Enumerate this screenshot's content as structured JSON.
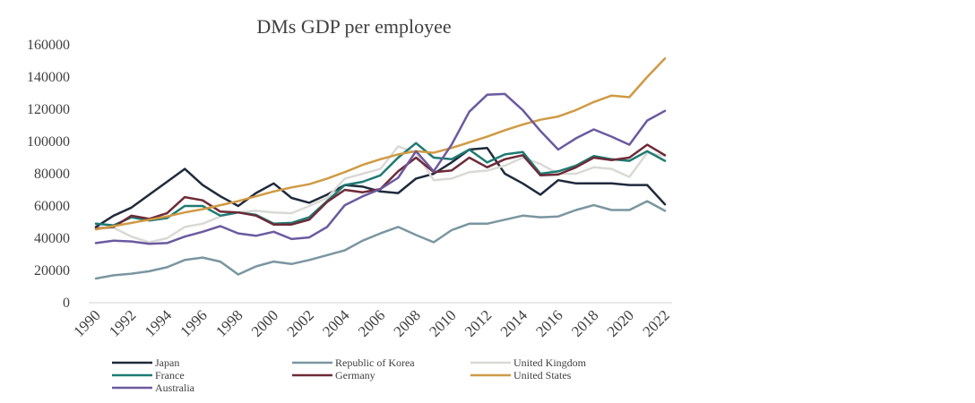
{
  "chart_data": {
    "type": "line",
    "title": "DMs  GDP per employee",
    "xlabel": "",
    "ylabel": "",
    "ylim": [
      0,
      160000
    ],
    "yticks": [
      0,
      20000,
      40000,
      60000,
      80000,
      100000,
      120000,
      140000,
      160000
    ],
    "x": [
      1990,
      1991,
      1992,
      1993,
      1994,
      1995,
      1996,
      1997,
      1998,
      1999,
      2000,
      2001,
      2002,
      2003,
      2004,
      2005,
      2006,
      2007,
      2008,
      2009,
      2010,
      2011,
      2012,
      2013,
      2014,
      2015,
      2016,
      2017,
      2018,
      2019,
      2020,
      2021,
      2022
    ],
    "xtick_labels": [
      "1990",
      "1992",
      "1994",
      "1996",
      "1998",
      "2000",
      "2002",
      "2004",
      "2006",
      "2008",
      "2010",
      "2012",
      "2014",
      "2016",
      "2018",
      "2020",
      "2022"
    ],
    "grid": false,
    "legend_position": "bottom",
    "series": [
      {
        "name": "Japan",
        "color": "#1f2a3c",
        "values": [
          47000,
          54000,
          59000,
          67000,
          75000,
          83000,
          73000,
          66000,
          60000,
          68000,
          74000,
          65000,
          62000,
          67000,
          73000,
          72000,
          69000,
          68000,
          77000,
          80000,
          87000,
          95000,
          96000,
          80000,
          74000,
          67000,
          76000,
          74000,
          74000,
          74000,
          73000,
          73000,
          61000
        ]
      },
      {
        "name": "Republic of Korea",
        "color": "#7a96a0",
        "values": [
          15000,
          17000,
          18000,
          19500,
          22000,
          26500,
          28000,
          25500,
          17500,
          22500,
          25500,
          24000,
          26500,
          29500,
          32500,
          38500,
          43000,
          47000,
          42000,
          37500,
          45000,
          49000,
          49000,
          51500,
          54000,
          53000,
          53500,
          57500,
          60500,
          57500,
          57500,
          63000,
          57000
        ]
      },
      {
        "name": "United Kingdom",
        "color": "#d9d9d6",
        "values": [
          46000,
          46500,
          41000,
          37500,
          40000,
          47000,
          49000,
          53500,
          56000,
          57000,
          56000,
          55500,
          60000,
          65000,
          77000,
          80000,
          83000,
          97000,
          93000,
          76000,
          77000,
          81000,
          82000,
          85000,
          90000,
          86000,
          80000,
          80000,
          84000,
          83000,
          78000,
          93000,
          91000
        ]
      },
      {
        "name": "France",
        "color": "#1e7a72",
        "values": [
          49000,
          48000,
          53000,
          51000,
          52500,
          60000,
          60000,
          54000,
          56000,
          54500,
          49000,
          49500,
          53000,
          63000,
          73000,
          75000,
          79000,
          90000,
          99000,
          90000,
          89000,
          95000,
          87000,
          92000,
          93500,
          80000,
          81500,
          85000,
          91000,
          89000,
          88000,
          94000,
          88000
        ]
      },
      {
        "name": "Germany",
        "color": "#6e2a38",
        "values": [
          46000,
          47000,
          54000,
          52000,
          55500,
          65500,
          63500,
          56500,
          56000,
          54000,
          48500,
          48500,
          51500,
          62500,
          70000,
          68500,
          70500,
          81500,
          90000,
          81000,
          82000,
          90000,
          84000,
          89000,
          91500,
          79000,
          79500,
          84000,
          90000,
          88500,
          90000,
          98000,
          91500
        ]
      },
      {
        "name": "United States",
        "color": "#d09a44",
        "values": [
          45500,
          47500,
          49500,
          51500,
          53500,
          56000,
          58000,
          60500,
          63000,
          66000,
          69000,
          71500,
          73500,
          77000,
          81000,
          85500,
          89000,
          92000,
          94000,
          93000,
          96000,
          99500,
          103000,
          107000,
          110500,
          113500,
          115500,
          119500,
          124500,
          128500,
          127500,
          140000,
          151500
        ]
      },
      {
        "name": "Australia",
        "color": "#6b5aa0",
        "values": [
          37000,
          38500,
          38000,
          36500,
          37000,
          41000,
          44000,
          47500,
          43000,
          41500,
          44000,
          39500,
          40500,
          47000,
          60500,
          66000,
          70500,
          77500,
          94000,
          81500,
          98000,
          118500,
          129000,
          129500,
          119500,
          106500,
          95000,
          102000,
          107500,
          103000,
          98000,
          113000,
          119000
        ]
      }
    ]
  }
}
